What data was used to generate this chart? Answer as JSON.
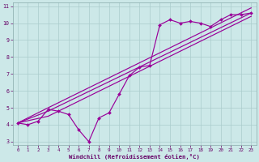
{
  "line1_x": [
    0,
    1,
    2,
    3,
    4,
    5,
    6,
    7,
    8,
    9,
    10,
    11,
    12,
    13,
    14,
    15,
    16,
    17,
    18,
    19,
    20,
    21,
    22,
    23
  ],
  "line1_y": [
    4.1,
    4.0,
    4.2,
    4.9,
    4.8,
    4.6,
    3.7,
    3.0,
    4.4,
    4.7,
    5.8,
    6.9,
    7.4,
    7.5,
    9.9,
    10.2,
    10.0,
    10.1,
    10.0,
    9.8,
    10.2,
    10.5,
    10.5,
    10.6
  ],
  "line2_x": [
    0,
    3,
    23
  ],
  "line2_y": [
    4.1,
    5.0,
    10.9
  ],
  "line3_x": [
    0,
    3,
    23
  ],
  "line3_y": [
    4.1,
    4.8,
    10.6
  ],
  "line4_x": [
    0,
    3,
    23
  ],
  "line4_y": [
    4.1,
    4.5,
    10.4
  ],
  "color": "#990099",
  "bg_color": "#cce8e8",
  "grid_color": "#aacccc",
  "xlabel": "Windchill (Refroidissement éolien,°C)",
  "xlim": [
    -0.5,
    23.5
  ],
  "ylim": [
    2.8,
    11.2
  ],
  "xticks": [
    0,
    1,
    2,
    3,
    4,
    5,
    6,
    7,
    8,
    9,
    10,
    11,
    12,
    13,
    14,
    15,
    16,
    17,
    18,
    19,
    20,
    21,
    22,
    23
  ],
  "yticks": [
    3,
    4,
    5,
    6,
    7,
    8,
    9,
    10,
    11
  ]
}
